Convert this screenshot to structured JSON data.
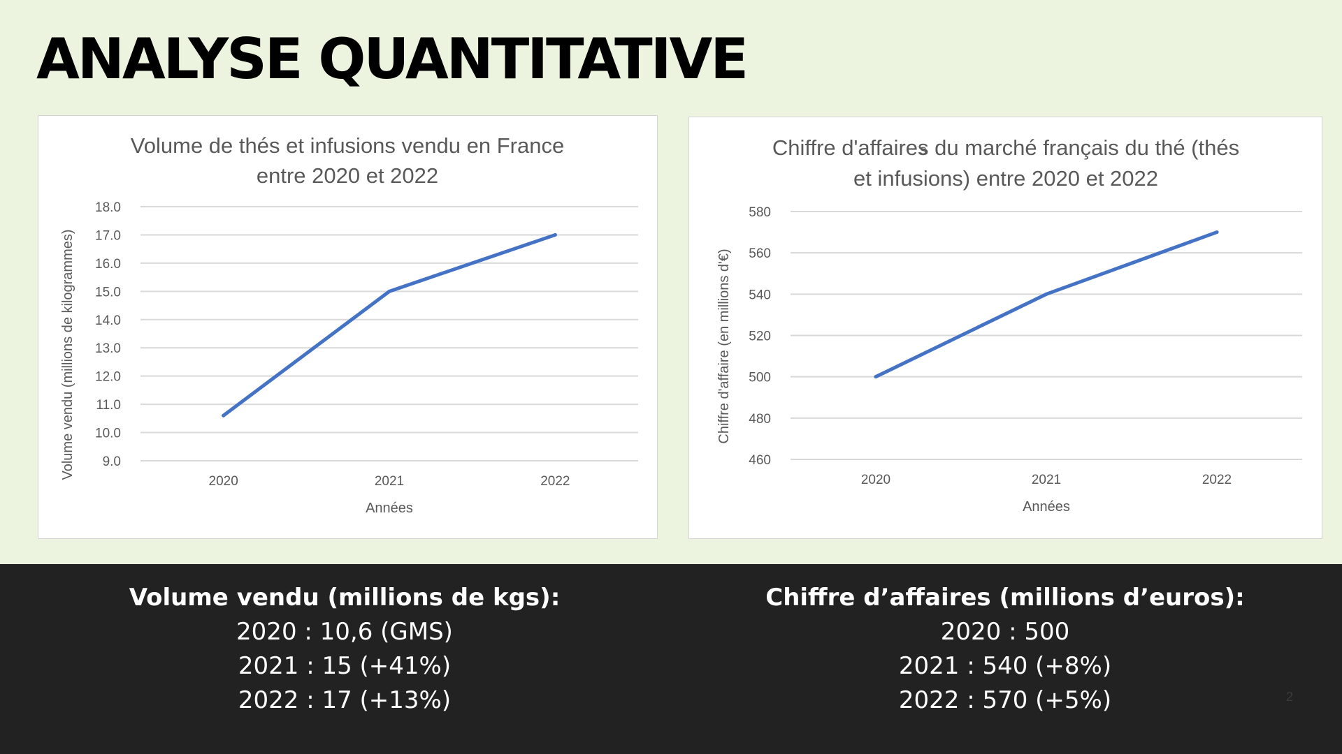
{
  "slide": {
    "title": "ANALYSE QUANTITATIVE",
    "page_number": "2",
    "stray_char": "s"
  },
  "colors": {
    "background": "#ecf3df",
    "footer": "#222222",
    "series_line": "#4472c4"
  },
  "summary": {
    "volume": {
      "heading": "Volume vendu (millions de kgs):",
      "lines": [
        "2020 : 10,6 (GMS)",
        "2021 : 15 (+41%)",
        "2022 : 17 (+13%)"
      ]
    },
    "revenue": {
      "heading": "Chiffre d’affaires (millions d’euros):",
      "lines": [
        "2020 : 500",
        "2021 : 540 (+8%)",
        "2022 : 570 (+5%)"
      ]
    }
  },
  "chart_data": [
    {
      "type": "line",
      "title_lines": [
        "Volume de thés et infusions vendu en France",
        "entre 2020 et 2022"
      ],
      "xlabel": "Années",
      "ylabel": "Volume vendu (millions de kilogrammes)",
      "categories": [
        "2020",
        "2021",
        "2022"
      ],
      "values": [
        10.6,
        15.0,
        17.0
      ],
      "ylim": [
        9.0,
        18.0
      ],
      "yticks": [
        "9.0",
        "10.0",
        "11.0",
        "12.0",
        "13.0",
        "14.0",
        "15.0",
        "16.0",
        "17.0",
        "18.0"
      ],
      "grid": true
    },
    {
      "type": "line",
      "title_lines": [
        "Chiffre d'affaires du marché français du thé (thés",
        "et infusions) entre 2020 et 2022"
      ],
      "xlabel": "Années",
      "ylabel": "Chiffre d'affaire (en millions d'€)",
      "categories": [
        "2020",
        "2021",
        "2022"
      ],
      "values": [
        500,
        540,
        570
      ],
      "ylim": [
        460,
        580
      ],
      "yticks": [
        "460",
        "480",
        "500",
        "520",
        "540",
        "560",
        "580"
      ],
      "grid": true
    }
  ]
}
